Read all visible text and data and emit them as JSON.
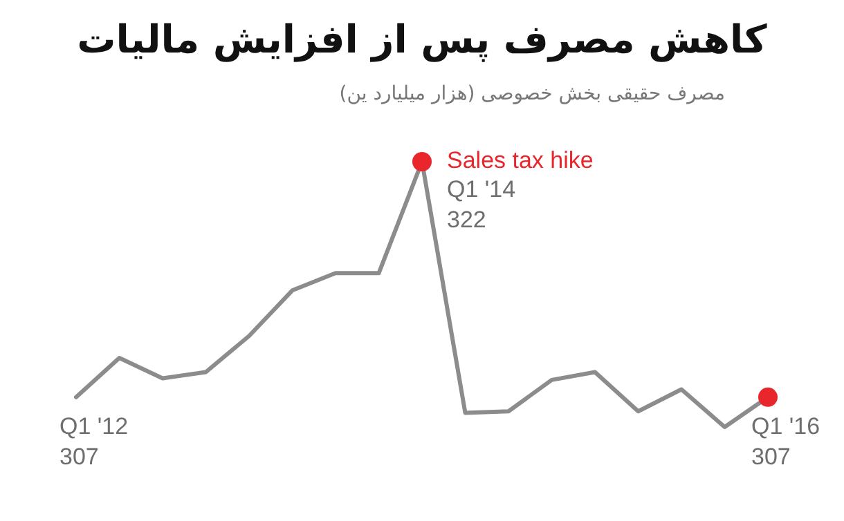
{
  "chart_data": {
    "type": "line",
    "title": "کاهش مصرف پس از افزایش مالیات",
    "subtitle": "مصرف حقیقی بخش خصوصی (هزار میلیارد ین)",
    "categories": [
      null,
      null,
      null,
      null,
      null,
      null,
      null,
      null,
      null,
      null,
      null,
      null,
      null,
      null,
      null,
      null,
      null
    ],
    "annotations": [
      "Sales tax hike"
    ],
    "series": [
      {
        "color": "#8c8c8c",
        "values": [
          307,
          309.5,
          308.2,
          308.6,
          310.9,
          313.8,
          314.9,
          314.9,
          322,
          306.0,
          306.1,
          308.1,
          308.6,
          306.1,
          307.5,
          305.1,
          307
        ],
        "colors": [
          null,
          null,
          null,
          null,
          null,
          null,
          null,
          null,
          "#e8262c",
          null,
          null,
          null,
          null,
          null,
          null,
          null,
          "#e8262c"
        ],
        "value_labels": [
          "Q1 '12\n307",
          null,
          null,
          null,
          null,
          null,
          null,
          null,
          "Q1 '14\n322",
          null,
          null,
          null,
          null,
          null,
          null,
          null,
          "Q1 '16\n307"
        ]
      }
    ]
  }
}
